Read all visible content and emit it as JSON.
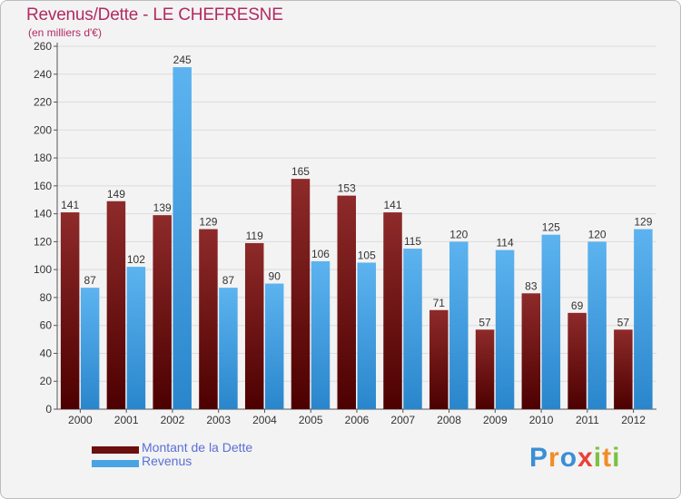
{
  "title": "Revenus/Dette - LE CHEFRESNE",
  "subtitle": "(en milliers d'€)",
  "chart_data": {
    "type": "bar",
    "title": "Revenus/Dette - LE CHEFRESNE",
    "ylabel": "(en milliers d'€)",
    "xlabel": "",
    "categories": [
      "2000",
      "2001",
      "2002",
      "2003",
      "2004",
      "2005",
      "2006",
      "2007",
      "2008",
      "2009",
      "2010",
      "2011",
      "2012"
    ],
    "series": [
      {
        "name": "Montant de la Dette",
        "color": "#7a1616",
        "values": [
          141,
          149,
          139,
          129,
          119,
          165,
          153,
          141,
          71,
          57,
          83,
          69,
          57
        ]
      },
      {
        "name": "Revenus",
        "color": "#4aa3e3",
        "values": [
          87,
          102,
          245,
          87,
          90,
          106,
          105,
          115,
          120,
          114,
          125,
          120,
          129
        ]
      }
    ],
    "ylim": [
      0,
      260
    ],
    "yticks": [
      0,
      20,
      40,
      60,
      80,
      100,
      120,
      140,
      160,
      180,
      200,
      220,
      240,
      260
    ],
    "grid": true,
    "legend": "bottom-left"
  },
  "legend": {
    "items": [
      {
        "label": "Montant de la Dette",
        "color": "#6b0f0f"
      },
      {
        "label": "Revenus",
        "color": "#4aa3e3"
      }
    ]
  },
  "logo": {
    "letters": [
      {
        "ch": "P",
        "color": "#3a8fd6"
      },
      {
        "ch": "r",
        "color": "#f28c28"
      },
      {
        "ch": "o",
        "color": "#3a8fd6"
      },
      {
        "ch": "x",
        "color": "#e8423a"
      },
      {
        "ch": "i",
        "color": "#7cc142"
      },
      {
        "ch": "t",
        "color": "#f28c28"
      },
      {
        "ch": "i",
        "color": "#7cc142"
      }
    ]
  }
}
